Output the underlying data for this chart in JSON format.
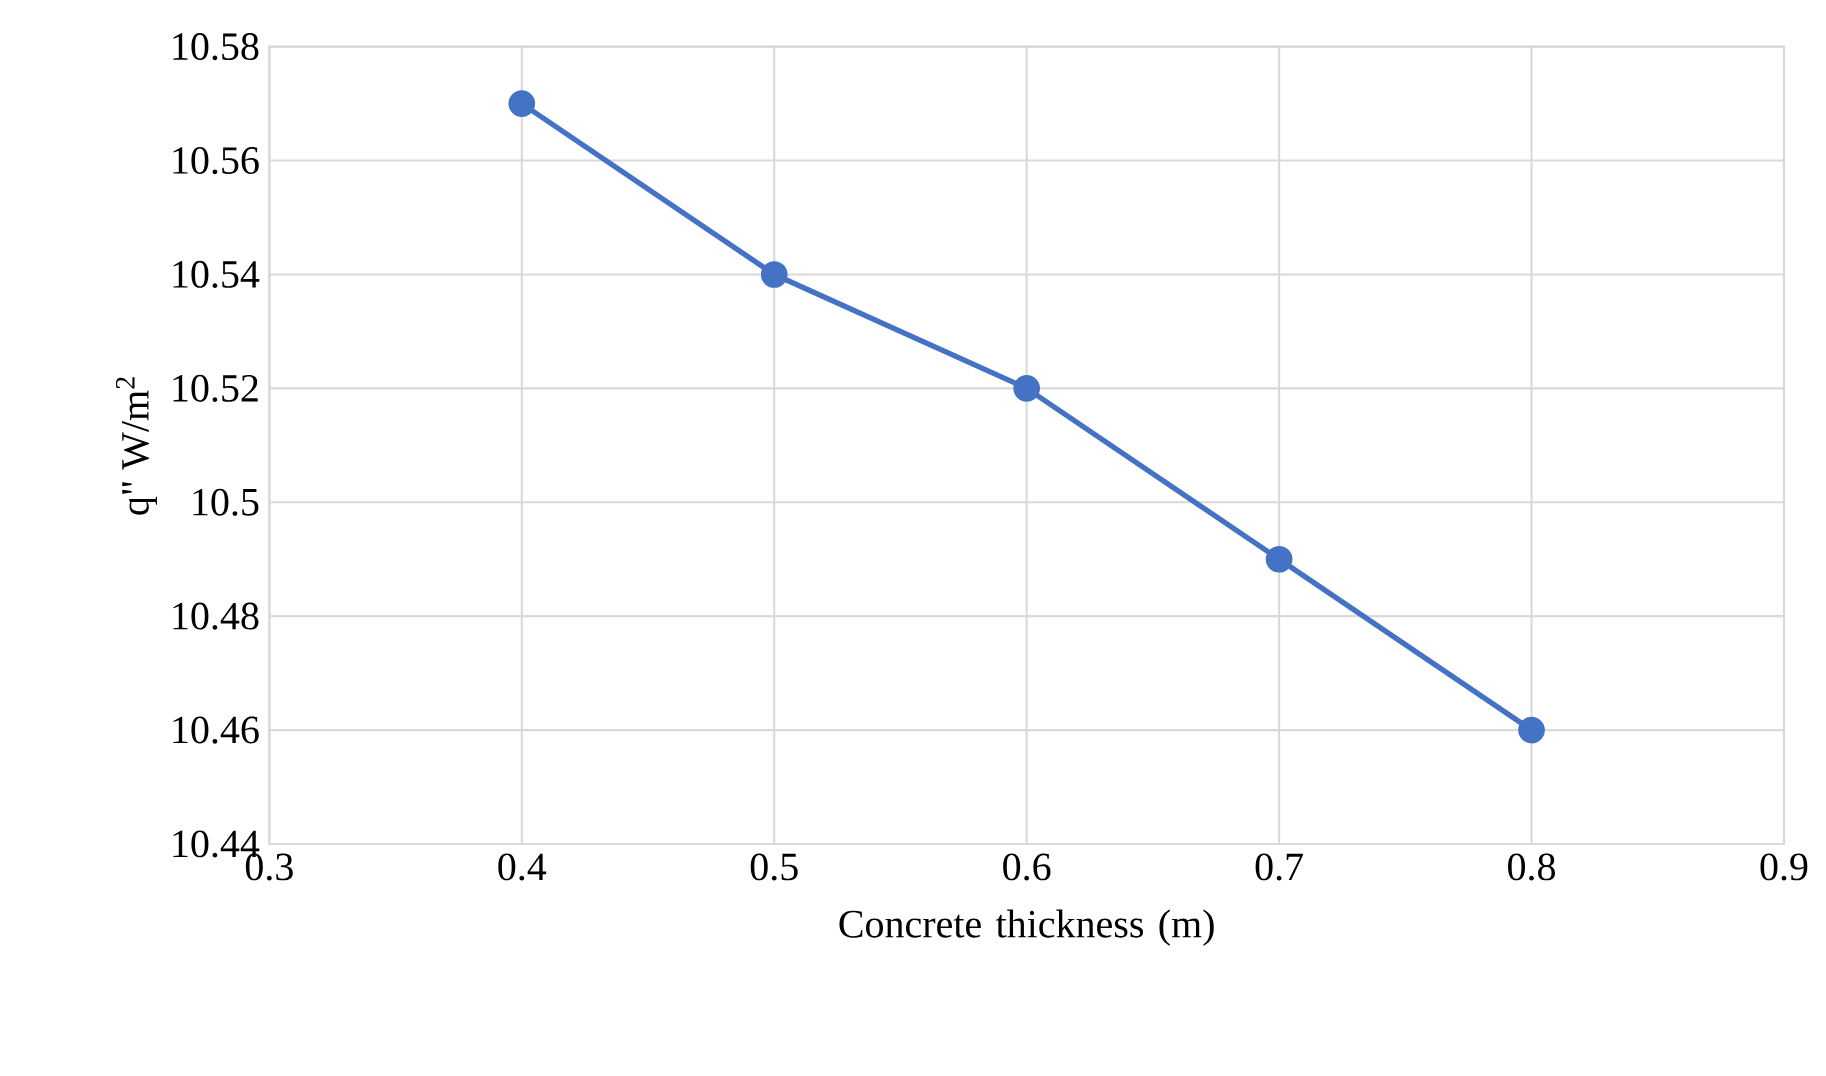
{
  "chart_data": {
    "type": "line",
    "xlabel": "Concrete thickness (m)",
    "ylabel": "q\" W/m$^{2}$",
    "x": [
      0.4,
      0.5,
      0.6,
      0.7,
      0.8
    ],
    "series": [
      {
        "color": "#4472c4",
        "values": [
          10.57,
          10.54,
          10.52,
          10.49,
          10.46
        ]
      }
    ],
    "xlim": [
      0.3,
      0.9
    ],
    "xticks": [
      0.3,
      0.4,
      0.5,
      0.6,
      0.7,
      0.8,
      0.9
    ],
    "ylim": [
      10.44,
      10.58
    ],
    "yticks": [
      10.44,
      10.46,
      10.48,
      10.5,
      10.52,
      10.54,
      10.56,
      10.58
    ],
    "grid": true,
    "marker": "circle",
    "line_style": "solid"
  }
}
